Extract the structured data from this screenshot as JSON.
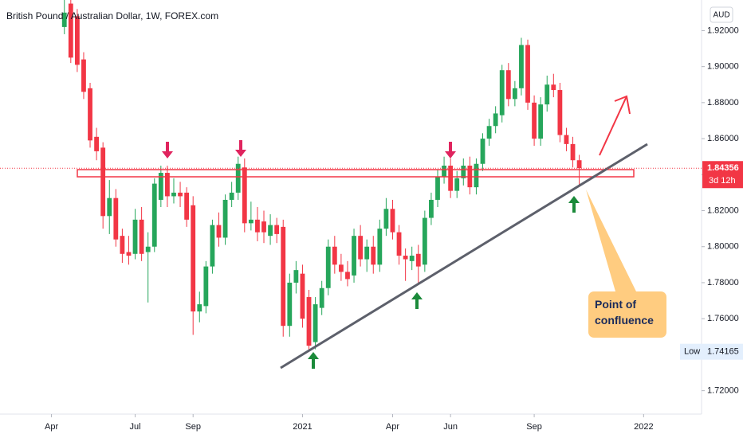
{
  "chart_data": {
    "type": "candlestick",
    "title": "British Pound / Australian Dollar, 1W, FOREX.com",
    "currency": "AUD",
    "up_color": "#26a65b",
    "down_color": "#f23645",
    "x": [
      2,
      3,
      4,
      5,
      6,
      7,
      8,
      9,
      10,
      11,
      12,
      13,
      14,
      15,
      16,
      17,
      18,
      19,
      20,
      21,
      22,
      23,
      24,
      25,
      26,
      27,
      28,
      29,
      30,
      31,
      32,
      33,
      34,
      35,
      36,
      37,
      38,
      39,
      40,
      41,
      42,
      43,
      44,
      45,
      46,
      47,
      48,
      49,
      50,
      51,
      52,
      53,
      54,
      55,
      56,
      57,
      58,
      59,
      60,
      61,
      62,
      63,
      64,
      65,
      66,
      67,
      68,
      69,
      70,
      71,
      72,
      73,
      74,
      75,
      76,
      77,
      78,
      79,
      80,
      81,
      82
    ],
    "open": [
      1.922,
      1.935,
      1.928,
      1.904,
      1.888,
      1.861,
      1.855,
      1.817,
      1.827,
      1.806,
      1.797,
      1.796,
      1.815,
      1.797,
      1.8,
      1.826,
      1.841,
      1.828,
      1.83,
      1.83,
      1.823,
      1.764,
      1.767,
      1.789,
      1.812,
      1.805,
      1.826,
      1.83,
      1.844,
      1.813,
      1.815,
      1.814,
      1.806,
      1.812,
      1.811,
      1.756,
      1.78,
      1.785,
      1.772,
      1.747,
      1.766,
      1.777,
      1.8,
      1.79,
      1.786,
      1.784,
      1.806,
      1.793,
      1.8,
      1.79,
      1.81,
      1.821,
      1.808,
      1.795,
      1.792,
      1.796,
      1.79,
      1.816,
      1.826,
      1.839,
      1.845,
      1.831,
      1.838,
      1.845,
      1.833,
      1.846,
      1.86,
      1.867,
      1.873,
      1.898,
      1.882,
      1.888,
      1.912,
      1.88,
      1.86,
      1.879,
      1.89,
      1.887,
      1.862,
      1.857,
      1.848
    ],
    "high": [
      1.937,
      1.937,
      1.932,
      1.908,
      1.891,
      1.866,
      1.858,
      1.837,
      1.832,
      1.81,
      1.806,
      1.821,
      1.822,
      1.808,
      1.838,
      1.845,
      1.845,
      1.838,
      1.836,
      1.833,
      1.828,
      1.775,
      1.792,
      1.815,
      1.819,
      1.829,
      1.836,
      1.85,
      1.849,
      1.825,
      1.822,
      1.82,
      1.818,
      1.816,
      1.815,
      1.785,
      1.792,
      1.79,
      1.776,
      1.772,
      1.781,
      1.804,
      1.806,
      1.796,
      1.792,
      1.81,
      1.812,
      1.804,
      1.806,
      1.815,
      1.827,
      1.826,
      1.812,
      1.799,
      1.8,
      1.801,
      1.82,
      1.83,
      1.843,
      1.85,
      1.849,
      1.842,
      1.849,
      1.85,
      1.849,
      1.863,
      1.871,
      1.878,
      1.901,
      1.902,
      1.892,
      1.916,
      1.915,
      1.884,
      1.883,
      1.895,
      1.896,
      1.891,
      1.866,
      1.861,
      1.851
    ],
    "low": [
      1.918,
      1.902,
      1.897,
      1.882,
      1.855,
      1.848,
      1.81,
      1.807,
      1.8,
      1.791,
      1.79,
      1.793,
      1.792,
      1.769,
      1.797,
      1.822,
      1.822,
      1.824,
      1.822,
      1.811,
      1.751,
      1.758,
      1.763,
      1.785,
      1.8,
      1.801,
      1.822,
      1.826,
      1.808,
      1.809,
      1.803,
      1.802,
      1.801,
      1.802,
      1.75,
      1.75,
      1.774,
      1.755,
      1.74165,
      1.743,
      1.762,
      1.773,
      1.785,
      1.781,
      1.778,
      1.78,
      1.789,
      1.786,
      1.785,
      1.786,
      1.806,
      1.804,
      1.79,
      1.781,
      1.787,
      1.78,
      1.786,
      1.812,
      1.822,
      1.835,
      1.827,
      1.827,
      1.834,
      1.829,
      1.829,
      1.842,
      1.856,
      1.863,
      1.869,
      1.878,
      1.878,
      1.884,
      1.876,
      1.856,
      1.856,
      1.875,
      1.883,
      1.858,
      1.853,
      1.844,
      1.834
    ],
    "close": [
      1.93,
      1.905,
      1.901,
      1.886,
      1.859,
      1.853,
      1.817,
      1.827,
      1.804,
      1.796,
      1.795,
      1.815,
      1.796,
      1.8,
      1.835,
      1.841,
      1.828,
      1.83,
      1.828,
      1.815,
      1.764,
      1.768,
      1.789,
      1.812,
      1.805,
      1.826,
      1.83,
      1.846,
      1.813,
      1.815,
      1.808,
      1.808,
      1.812,
      1.807,
      1.756,
      1.78,
      1.787,
      1.76,
      1.745,
      1.768,
      1.777,
      1.8,
      1.79,
      1.786,
      1.782,
      1.806,
      1.793,
      1.8,
      1.79,
      1.81,
      1.821,
      1.808,
      1.795,
      1.793,
      1.795,
      1.789,
      1.816,
      1.826,
      1.839,
      1.845,
      1.831,
      1.838,
      1.845,
      1.833,
      1.846,
      1.86,
      1.867,
      1.874,
      1.898,
      1.882,
      1.888,
      1.912,
      1.88,
      1.86,
      1.879,
      1.89,
      1.887,
      1.862,
      1.857,
      1.848,
      1.84356
    ],
    "xlim": [
      -8,
      101
    ],
    "xticks": [
      {
        "value": 0,
        "label": "Apr"
      },
      {
        "value": 13,
        "label": "Jul"
      },
      {
        "value": 22,
        "label": "Sep"
      },
      {
        "value": 39,
        "label": "2021"
      },
      {
        "value": 53,
        "label": "Apr"
      },
      {
        "value": 62,
        "label": "Jun"
      },
      {
        "value": 75,
        "label": "Sep"
      },
      {
        "value": 92,
        "label": "2022"
      }
    ],
    "ylim": [
      1.707,
      1.937
    ],
    "yticks": [
      {
        "value": 1.92,
        "label": "1.92000"
      },
      {
        "value": 1.9,
        "label": "1.90000"
      },
      {
        "value": 1.88,
        "label": "1.88000"
      },
      {
        "value": 1.86,
        "label": "1.86000"
      },
      {
        "value": 1.84,
        "label": "1.84000"
      },
      {
        "value": 1.82,
        "label": "1.82000"
      },
      {
        "value": 1.8,
        "label": "1.80000"
      },
      {
        "value": 1.78,
        "label": "1.78000"
      },
      {
        "value": 1.76,
        "label": "1.76000"
      },
      {
        "value": 1.74,
        "label": "1.74000"
      },
      {
        "value": 1.72,
        "label": "1.72000"
      }
    ],
    "last_price": 1.84356,
    "countdown": "3d 12h",
    "low_label": "Low",
    "low_value": 1.74165,
    "annotation": "Point of confluence"
  }
}
